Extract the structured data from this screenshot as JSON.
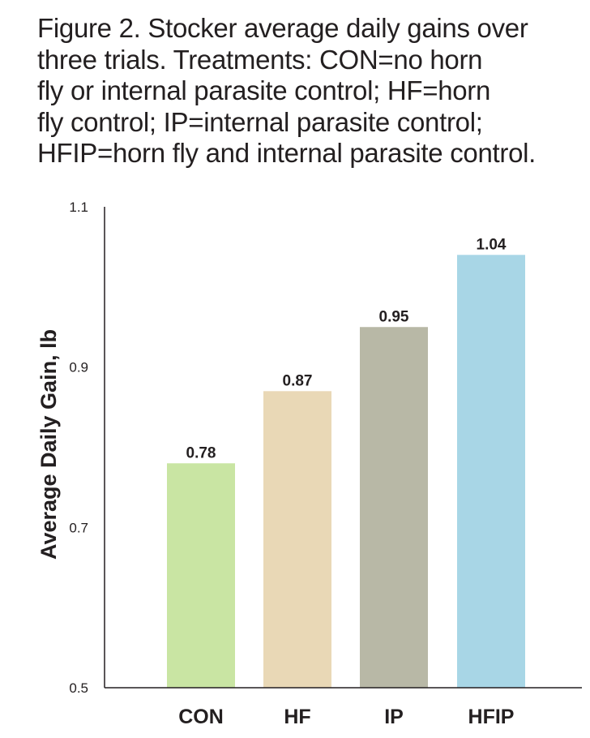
{
  "chart_data": {
    "type": "bar",
    "title_lines": [
      "Figure 2. Stocker average daily gains over",
      "three trials. Treatments: CON=no horn",
      "fly or internal parasite control; HF=horn",
      "fly control; IP=internal parasite control;",
      "HFIP=horn fly and internal parasite control."
    ],
    "categories": [
      "CON",
      "HF",
      "IP",
      "HFIP"
    ],
    "values": [
      0.78,
      0.87,
      0.95,
      1.04
    ],
    "data_labels": [
      "0.78",
      "0.87",
      "0.95",
      "1.04"
    ],
    "colors": [
      "#c9e5a3",
      "#e9d8b6",
      "#b8b8a6",
      "#a8d6e6"
    ],
    "xlabel": "",
    "ylabel": "Average Daily Gain, lb",
    "ylim": [
      0.5,
      1.1
    ],
    "yticks": [
      "0.5",
      "0.7",
      "0.9",
      "1.1"
    ],
    "grid": false,
    "legend": "none"
  }
}
